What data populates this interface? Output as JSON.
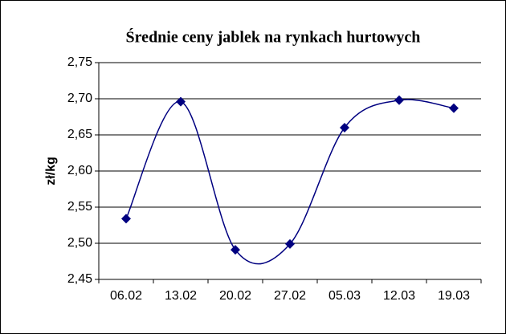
{
  "chart_data": {
    "type": "line",
    "title": "Średnie ceny jablek na rynkach hurtowych",
    "y_label": "zł/kg",
    "categories": [
      "06.02",
      "13.02",
      "20.02",
      "27.02",
      "05.03",
      "12.03",
      "19.03"
    ],
    "values": [
      2.534,
      2.696,
      2.491,
      2.499,
      2.66,
      2.698,
      2.687
    ],
    "color": "#000080",
    "ylim": [
      2.45,
      2.75
    ],
    "yticks": [
      {
        "value": 2.45,
        "label": "2,45"
      },
      {
        "value": 2.5,
        "label": "2,50"
      },
      {
        "value": 2.55,
        "label": "2,55"
      },
      {
        "value": 2.6,
        "label": "2,60"
      },
      {
        "value": 2.65,
        "label": "2,65"
      },
      {
        "value": 2.7,
        "label": "2,70"
      },
      {
        "value": 2.75,
        "label": "2,75"
      }
    ],
    "grid": true,
    "smooth": true
  }
}
